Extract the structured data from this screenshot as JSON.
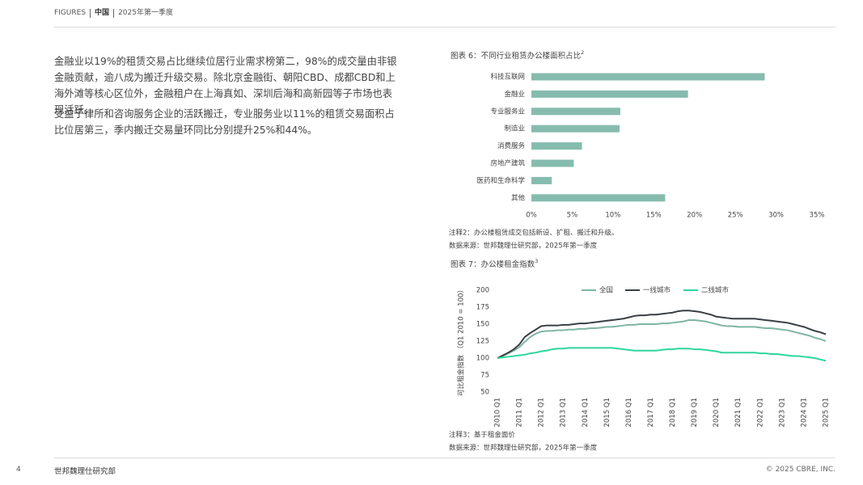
{
  "header": {
    "label": "FIGURES",
    "region": "中国",
    "period": "2025年第一季度"
  },
  "paragraphs": [
    "金融业以19%的租赁交易占比继续位居行业需求榜第二，98%的成交量由非银金融贡献，逾八成为搬迁升级交易。除北京金融街、朝阳CBD、成都CBD和上海外滩等核心区位外，金融租户在上海真如、深圳后海和高新园等子市场也表现活跃。",
    "受益于律所和咨询服务企业的活跃搬迁，专业服务业以11%的租赁交易面积占比位居第三，季内搬迁交易量环同比分别提升25%和44%。"
  ],
  "chart_data": [
    {
      "type": "hbar",
      "title": "图表 6：不同行业租赁办公楼面积占比",
      "title_superscript": "2",
      "categories": [
        "科技互联网",
        "金融业",
        "专业服务业",
        "制造业",
        "消费服务",
        "房地产建筑",
        "医药和生命科学",
        "其他"
      ],
      "values": [
        28.6,
        19.2,
        10.9,
        10.8,
        6.2,
        5.2,
        2.5,
        16.4
      ],
      "color": "#86bcad",
      "xlim": [
        0,
        35
      ],
      "xticks": [
        {
          "value": 0,
          "label": "0%"
        },
        {
          "value": 5,
          "label": "5%"
        },
        {
          "value": 10,
          "label": "10%"
        },
        {
          "value": 15,
          "label": "15%"
        },
        {
          "value": 20,
          "label": "20%"
        },
        {
          "value": 25,
          "label": "25%"
        },
        {
          "value": 30,
          "label": "30%"
        },
        {
          "value": 35,
          "label": "35%"
        }
      ],
      "grid": false,
      "notes": [
        "注释2：办公楼租赁成交包括新设、扩租、搬迁和升级。",
        "数据来源：世邦魏理仕研究部，2025年第一季度"
      ]
    },
    {
      "type": "line",
      "title": "图表 7：办公楼租金指数",
      "title_superscript": "3",
      "y_label": "可比租金指数 （Q1 2010 = 100）",
      "categories": [
        "2010 Q1",
        null,
        null,
        null,
        "2011 Q1",
        null,
        null,
        null,
        "2012 Q1",
        null,
        null,
        null,
        "2013 Q1",
        null,
        null,
        null,
        "2014 Q1",
        null,
        null,
        null,
        "2015 Q1",
        null,
        null,
        null,
        "2016 Q1",
        null,
        null,
        null,
        "2017 Q1",
        null,
        null,
        null,
        "2018 Q1",
        null,
        null,
        null,
        "2019 Q1",
        null,
        null,
        null,
        "2020 Q1",
        null,
        null,
        null,
        "2021 Q1",
        null,
        null,
        null,
        "2022 Q1",
        null,
        null,
        null,
        "2023 Q1",
        null,
        null,
        null,
        "2024 Q1",
        null,
        null,
        null,
        "2025 Q1"
      ],
      "series": [
        {
          "name": "全国",
          "color": "#7fb5a5",
          "values": [
            100,
            103,
            107,
            111,
            116,
            124,
            131,
            136,
            139,
            140,
            140,
            141,
            141,
            142,
            142,
            143,
            143,
            144,
            144,
            145,
            146,
            146,
            147,
            148,
            149,
            149,
            150,
            150,
            150,
            150,
            151,
            151,
            152,
            153,
            154,
            156,
            156,
            155,
            154,
            152,
            150,
            148,
            147,
            147,
            146,
            146,
            146,
            146,
            145,
            144,
            144,
            143,
            142,
            141,
            139,
            137,
            135,
            133,
            130,
            128,
            125
          ]
        },
        {
          "name": "一线城市",
          "color": "#3a3f44",
          "values": [
            100,
            104,
            108,
            113,
            120,
            131,
            137,
            142,
            147,
            148,
            148,
            148,
            149,
            149,
            150,
            151,
            151,
            152,
            153,
            154,
            155,
            156,
            157,
            158,
            160,
            162,
            163,
            163,
            164,
            164,
            165,
            166,
            167,
            169,
            170,
            170,
            169,
            168,
            166,
            164,
            161,
            160,
            159,
            158,
            158,
            158,
            158,
            158,
            157,
            156,
            155,
            154,
            153,
            152,
            150,
            148,
            146,
            143,
            140,
            138,
            135
          ]
        },
        {
          "name": "二线城市",
          "color": "#2fd69b",
          "values": [
            100,
            101,
            102,
            103,
            104,
            105,
            107,
            108,
            110,
            111,
            113,
            114,
            114,
            115,
            115,
            115,
            115,
            115,
            115,
            115,
            115,
            115,
            114,
            113,
            112,
            111,
            111,
            111,
            111,
            111,
            112,
            113,
            113,
            114,
            114,
            114,
            113,
            113,
            112,
            111,
            110,
            108,
            108,
            108,
            108,
            108,
            108,
            108,
            107,
            107,
            106,
            106,
            105,
            104,
            103,
            103,
            102,
            101,
            100,
            98,
            96
          ]
        }
      ],
      "ylim": [
        50,
        200
      ],
      "yticks": [
        50,
        75,
        100,
        125,
        150,
        175,
        200
      ],
      "grid": false,
      "legend": "top",
      "notes": [
        "注释3：基于租金面价",
        "数据来源：世邦魏理仕研究部，2025年第一季度"
      ]
    }
  ],
  "footer": {
    "page": "4",
    "source": "世邦魏理仕研究部",
    "copyright": "© 2025 CBRE, INC."
  }
}
